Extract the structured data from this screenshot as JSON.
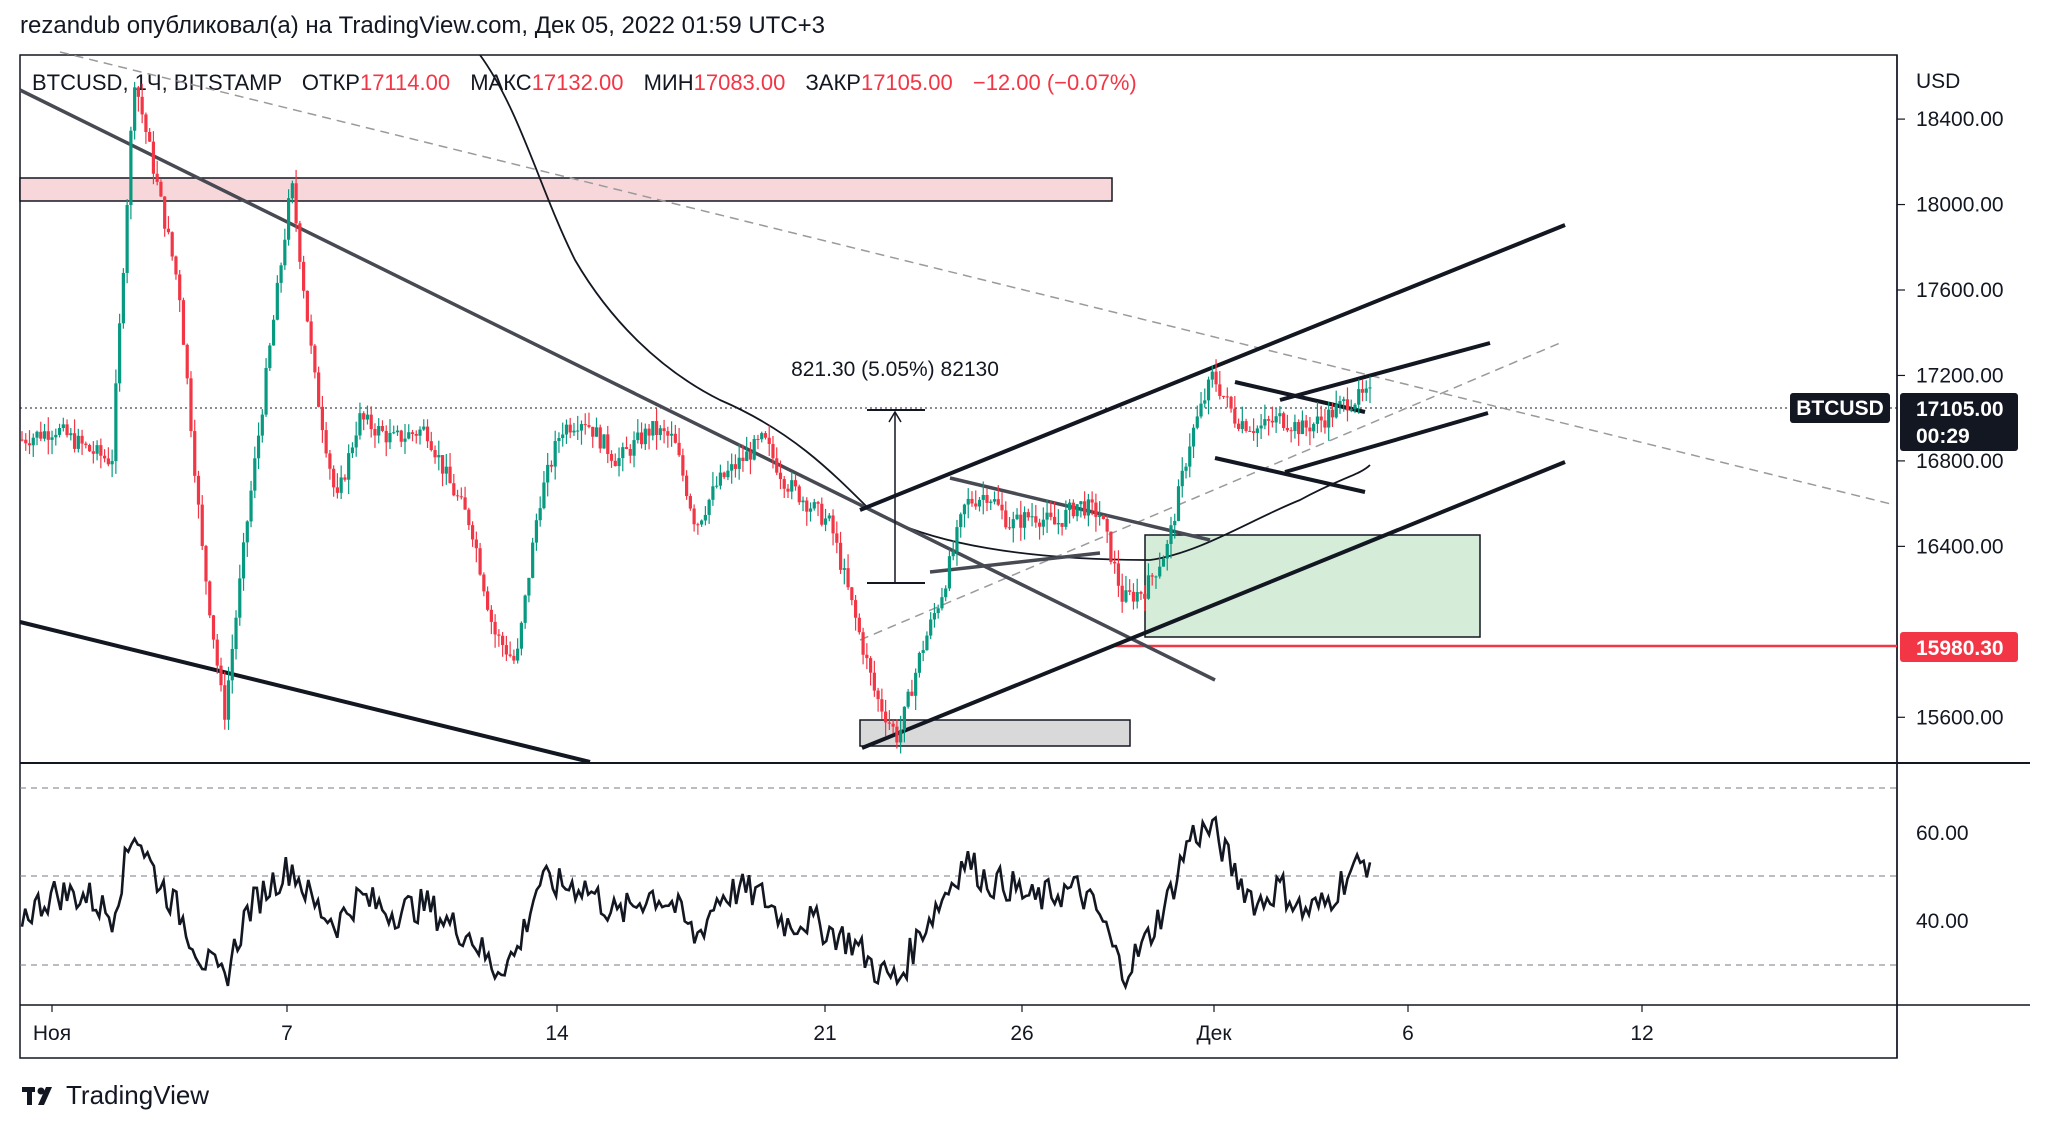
{
  "header": {
    "text": "rezandub опубликовал(а) на TradingView.com, Дек 05, 2022 01:59 UTC+3"
  },
  "legend": {
    "symbol": "BTCUSD, 1Ч, BITSTAMP",
    "open_label": "ОТКР",
    "open_value": "17114.00",
    "high_label": "МАКС",
    "high_value": "17132.00",
    "low_label": "МИН",
    "low_value": "17083.00",
    "close_label": "ЗАКР",
    "close_value": "17105.00",
    "change": "−12.00 (−0.07%)"
  },
  "price_axis": {
    "currency": "USD",
    "ticks": [
      "18400.00",
      "18000.00",
      "17600.00",
      "17200.00",
      "16800.00",
      "16400.00",
      "15600.00"
    ],
    "symbol_tag": "BTCUSD",
    "last_price": "17105.00",
    "countdown": "00:29",
    "level_tag": "15980.30"
  },
  "rsi_axis": {
    "ticks": [
      "60.00",
      "40.00"
    ]
  },
  "time_axis": {
    "labels": [
      "Ноя",
      "7",
      "14",
      "21",
      "26",
      "Дек",
      "6",
      "12"
    ]
  },
  "measure": {
    "label": "821.30 (5.05%) 82130"
  },
  "footer": {
    "brand": "TradingView"
  },
  "colors": {
    "up": "#089981",
    "down": "#f23645",
    "level": "#f23645",
    "resistance_zone": "#f8d7da",
    "demand_zone": "#d5ecd9"
  },
  "chart_data": {
    "type": "candlestick",
    "symbol": "BTCUSD",
    "interval": "1Ч",
    "exchange": "BITSTAMP",
    "last_bar": {
      "open": 17114.0,
      "high": 17132.0,
      "low": 17083.0,
      "close": 17105.0
    },
    "y_range": [
      15400,
      18700
    ],
    "y_ticks": [
      15600,
      16400,
      16800,
      17200,
      17600,
      18000,
      18400
    ],
    "x_ticks": [
      "Ноя",
      "7",
      "14",
      "21",
      "26",
      "Дек",
      "6",
      "12"
    ],
    "key_level": 15980.3,
    "resistance_zone": [
      18060,
      18180
    ],
    "demand_zone": [
      15990,
      16480
    ],
    "rsi_ticks": [
      40,
      60
    ],
    "price_path": [
      [
        0,
        16900
      ],
      [
        3,
        16950
      ],
      [
        6,
        16850
      ],
      [
        8,
        16800
      ],
      [
        10,
        18600
      ],
      [
        12,
        18100
      ],
      [
        14,
        17600
      ],
      [
        16,
        16400
      ],
      [
        18,
        15600
      ],
      [
        20,
        16500
      ],
      [
        22,
        17300
      ],
      [
        24,
        18100
      ],
      [
        26,
        17200
      ],
      [
        28,
        16600
      ],
      [
        30,
        17000
      ],
      [
        33,
        16900
      ],
      [
        36,
        16950
      ],
      [
        38,
        16700
      ],
      [
        40,
        16500
      ],
      [
        42,
        16000
      ],
      [
        44,
        15850
      ],
      [
        46,
        16600
      ],
      [
        48,
        16950
      ],
      [
        50,
        17000
      ],
      [
        53,
        16800
      ],
      [
        56,
        16950
      ],
      [
        58,
        16900
      ],
      [
        60,
        16500
      ],
      [
        62,
        16700
      ],
      [
        64,
        16800
      ],
      [
        66,
        16900
      ],
      [
        68,
        16700
      ],
      [
        70,
        16600
      ],
      [
        72,
        16500
      ],
      [
        74,
        16100
      ],
      [
        76,
        15700
      ],
      [
        78,
        15500
      ],
      [
        80,
        15900
      ],
      [
        82,
        16200
      ],
      [
        84,
        16600
      ],
      [
        86,
        16650
      ],
      [
        88,
        16500
      ],
      [
        90,
        16550
      ],
      [
        92,
        16500
      ],
      [
        94,
        16600
      ],
      [
        96,
        16550
      ],
      [
        98,
        16150
      ],
      [
        100,
        16200
      ],
      [
        102,
        16400
      ],
      [
        104,
        16900
      ],
      [
        106,
        17200
      ],
      [
        108,
        17000
      ],
      [
        110,
        16950
      ],
      [
        112,
        17000
      ],
      [
        114,
        16950
      ],
      [
        116,
        17000
      ],
      [
        118,
        17080
      ],
      [
        120,
        17105
      ]
    ],
    "rsi_path": [
      [
        0,
        47
      ],
      [
        3,
        53
      ],
      [
        6,
        52
      ],
      [
        8,
        47
      ],
      [
        10,
        70
      ],
      [
        12,
        57
      ],
      [
        14,
        48
      ],
      [
        16,
        36
      ],
      [
        18,
        30
      ],
      [
        20,
        48
      ],
      [
        22,
        55
      ],
      [
        24,
        60
      ],
      [
        26,
        50
      ],
      [
        28,
        45
      ],
      [
        30,
        52
      ],
      [
        33,
        48
      ],
      [
        36,
        50
      ],
      [
        38,
        45
      ],
      [
        40,
        42
      ],
      [
        42,
        33
      ],
      [
        44,
        37
      ],
      [
        46,
        56
      ],
      [
        48,
        55
      ],
      [
        50,
        55
      ],
      [
        53,
        47
      ],
      [
        56,
        53
      ],
      [
        58,
        50
      ],
      [
        60,
        41
      ],
      [
        62,
        52
      ],
      [
        64,
        54
      ],
      [
        66,
        52
      ],
      [
        68,
        45
      ],
      [
        70,
        46
      ],
      [
        72,
        43
      ],
      [
        74,
        40
      ],
      [
        76,
        33
      ],
      [
        78,
        30
      ],
      [
        80,
        43
      ],
      [
        82,
        52
      ],
      [
        84,
        62
      ],
      [
        86,
        56
      ],
      [
        88,
        55
      ],
      [
        90,
        51
      ],
      [
        92,
        53
      ],
      [
        94,
        54
      ],
      [
        96,
        47
      ],
      [
        98,
        32
      ],
      [
        100,
        40
      ],
      [
        102,
        51
      ],
      [
        104,
        68
      ],
      [
        106,
        70
      ],
      [
        108,
        58
      ],
      [
        110,
        50
      ],
      [
        112,
        55
      ],
      [
        114,
        48
      ],
      [
        116,
        50
      ],
      [
        118,
        58
      ],
      [
        120,
        62
      ]
    ]
  }
}
